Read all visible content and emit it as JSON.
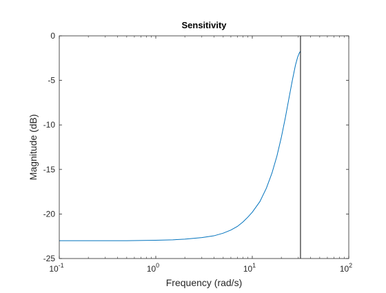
{
  "chart_data": {
    "type": "line",
    "title": "Sensitivity",
    "xlabel": "Frequency  (rad/s)",
    "ylabel": "Magnitude (dB)",
    "xscale": "log",
    "xlim": [
      0.1,
      100
    ],
    "ylim": [
      -25,
      0
    ],
    "grid": false,
    "colors": {
      "series": "#0072BD",
      "axes": "#262626",
      "marker": "#000000",
      "background": "#ffffff"
    },
    "x_ticks": [
      {
        "value": 0.1,
        "base": "10",
        "exp": "-1"
      },
      {
        "value": 1,
        "base": "10",
        "exp": "0"
      },
      {
        "value": 10,
        "base": "10",
        "exp": "1"
      },
      {
        "value": 100,
        "base": "10",
        "exp": "2"
      }
    ],
    "y_ticks": [
      {
        "value": 0,
        "label": "0"
      },
      {
        "value": -5,
        "label": "-5"
      },
      {
        "value": -10,
        "label": "-10"
      },
      {
        "value": -15,
        "label": "-15"
      },
      {
        "value": -20,
        "label": "-20"
      },
      {
        "value": -25,
        "label": "-25"
      }
    ],
    "vertical_line_x": 31.6,
    "series": [
      {
        "x": [
          0.1,
          0.2,
          0.5,
          1.0,
          1.5,
          2.0,
          3.0,
          4.0,
          5.0,
          6.0,
          7.0,
          8.0,
          9.0,
          10.0,
          12.0,
          14.0,
          16.0,
          18.0,
          20.0,
          22.0,
          24.0,
          26.0,
          28.0,
          29.5,
          30.5,
          31.0,
          31.6
        ],
        "y": [
          -23.0,
          -23.0,
          -23.0,
          -22.95,
          -22.9,
          -22.82,
          -22.65,
          -22.45,
          -22.15,
          -21.8,
          -21.4,
          -20.9,
          -20.35,
          -19.8,
          -18.6,
          -17.1,
          -15.4,
          -13.5,
          -11.4,
          -9.2,
          -7.0,
          -5.0,
          -3.3,
          -2.4,
          -2.0,
          -1.85,
          -1.75
        ]
      }
    ]
  }
}
